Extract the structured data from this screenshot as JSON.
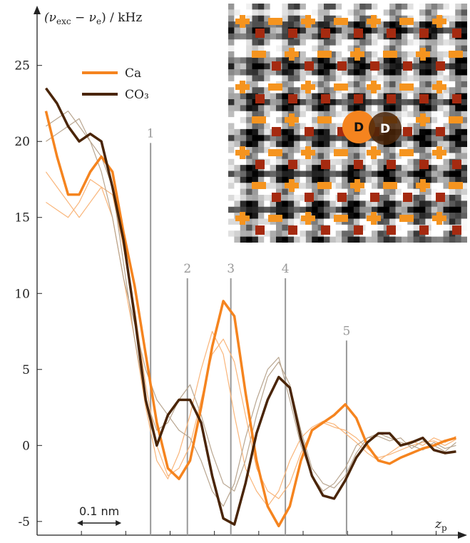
{
  "chart_data": {
    "type": "line",
    "ylabel": {
      "pre": "(ν",
      "sub1": "exc",
      "mid": " − ν",
      "sub2": "e",
      "post": ") / kHz"
    },
    "xlabel": {
      "main": "z",
      "sub": "p"
    },
    "xlim": [
      0,
      0.97
    ],
    "ylim": [
      -5.9,
      28.6
    ],
    "xticks": [
      0.1,
      0.2,
      0.3,
      0.4,
      0.5,
      0.6,
      0.7,
      0.8,
      0.9
    ],
    "yticks": [
      -5,
      0,
      5,
      10,
      15,
      20,
      25
    ],
    "x": [
      0.02,
      0.045,
      0.07,
      0.095,
      0.12,
      0.145,
      0.17,
      0.195,
      0.22,
      0.245,
      0.27,
      0.295,
      0.32,
      0.345,
      0.37,
      0.395,
      0.42,
      0.445,
      0.47,
      0.495,
      0.52,
      0.545,
      0.57,
      0.595,
      0.62,
      0.645,
      0.67,
      0.695,
      0.72,
      0.745,
      0.77,
      0.795,
      0.82,
      0.845,
      0.87,
      0.895,
      0.92,
      0.945
    ],
    "series": [
      {
        "name": "Ca",
        "color": "#f5841f",
        "values": [
          22,
          19,
          16.5,
          16.5,
          18,
          19,
          18,
          14,
          10.5,
          6,
          1.5,
          -1.5,
          -2.2,
          -1,
          2.5,
          6.5,
          9.5,
          8.5,
          3.5,
          -1,
          -4,
          -5.3,
          -4,
          -1,
          1,
          1.5,
          2,
          2.7,
          1.8,
          0,
          -1,
          -1.2,
          -0.8,
          -0.5,
          -0.2,
          0,
          0.3,
          0.5
        ]
      },
      {
        "name": "CO₃",
        "color": "#4a2508",
        "values": [
          23.5,
          22.5,
          21,
          20,
          20.5,
          20,
          17,
          13.5,
          8.5,
          3,
          0,
          2,
          3,
          3,
          1.5,
          -2,
          -4.8,
          -5.2,
          -2.5,
          0.8,
          3,
          4.5,
          3.8,
          0.5,
          -2,
          -3.3,
          -3.5,
          -2.3,
          -0.8,
          0.2,
          0.8,
          0.8,
          0,
          0.2,
          0.5,
          -0.3,
          -0.5,
          -0.4
        ]
      }
    ],
    "background_series": [
      {
        "color": "#f9b57a",
        "values": [
          18,
          17,
          16,
          15,
          16,
          17,
          16.5,
          13,
          9,
          4,
          0,
          -2,
          -1.5,
          0,
          3,
          6,
          7,
          5.5,
          2,
          -1.5,
          -3,
          -3.5,
          -2.5,
          -0.5,
          1,
          1.5,
          1.2,
          1,
          0.5,
          -0.2,
          -0.8,
          -0.6,
          -0.3,
          0,
          0.2,
          0.3,
          0,
          0.4
        ]
      },
      {
        "color": "#f9b57a",
        "values": [
          16,
          15.5,
          15,
          16,
          17.5,
          17,
          15,
          11,
          7,
          2.5,
          -1,
          -2.2,
          -0.5,
          2,
          5,
          7.5,
          6,
          2,
          -1.5,
          -3,
          -4,
          -3,
          -1,
          0.5,
          1.2,
          1.6,
          1.4,
          0.8,
          0.2,
          -0.5,
          -1,
          -0.5,
          0,
          0.3,
          0,
          0.5,
          0.2,
          0.6
        ]
      },
      {
        "color": "#b8a58f",
        "values": [
          21,
          21.5,
          22,
          21,
          20,
          19,
          17,
          12,
          7,
          3,
          1,
          1.5,
          3,
          4,
          2,
          -0.5,
          -2.5,
          -3,
          -1,
          2,
          4.5,
          5.5,
          4,
          1,
          -1.5,
          -2.5,
          -2.8,
          -2,
          -0.5,
          0.5,
          0.8,
          0.5,
          0.2,
          0,
          -0.3,
          0.2,
          -0.2,
          0
        ]
      },
      {
        "color": "#b8a58f",
        "values": [
          20,
          20.5,
          21,
          21.5,
          20,
          18,
          15,
          11,
          8,
          5,
          3,
          2,
          1,
          0.5,
          -1,
          -3,
          -4,
          -2.5,
          0.5,
          3,
          5,
          5.8,
          3,
          0,
          -2,
          -3,
          -2.5,
          -1.5,
          0,
          0.5,
          0.6,
          0.3,
          0.5,
          -0.2,
          0.3,
          0,
          -0.4,
          0.2
        ]
      }
    ],
    "markers": [
      {
        "label": "1",
        "x": 0.256,
        "y": 19.9
      },
      {
        "label": "2",
        "x": 0.339,
        "y": 11
      },
      {
        "label": "3",
        "x": 0.437,
        "y": 11
      },
      {
        "label": "4",
        "x": 0.56,
        "y": 11
      },
      {
        "label": "5",
        "x": 0.698,
        "y": 6.9
      }
    ],
    "scale_bar": {
      "label": "0.1 nm",
      "length": 0.1
    },
    "inset": {
      "labels": [
        "D",
        "D"
      ]
    }
  }
}
